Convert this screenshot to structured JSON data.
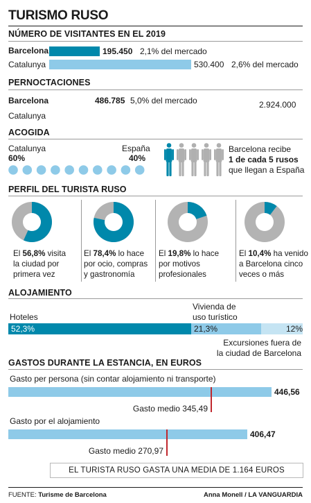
{
  "title": "TURISMO RUSO",
  "colors": {
    "dark": "#0088ab",
    "light": "#8ecae8",
    "lighter": "#c5e4f3",
    "grey": "#b3b3b3",
    "red": "#c0272d"
  },
  "visitors": {
    "heading": "NÚMERO DE VISITANTES EN EL 2019",
    "rows": [
      {
        "label": "Barcelona",
        "value": "195.450",
        "share": "2,1% del mercado"
      },
      {
        "label": "Catalunya",
        "value": "530.400",
        "share": "2,6% del mercado"
      }
    ]
  },
  "nights": {
    "heading": "PERNOCTACIONES",
    "rows": [
      {
        "label": "Barcelona",
        "value": "486.785",
        "share": "5,0% del mercado"
      },
      {
        "label": "Catalunya",
        "value": "2.924.000",
        "share": ""
      }
    ]
  },
  "reception": {
    "heading": "ACOGIDA",
    "left_label": "Catalunya",
    "left_value": "60%",
    "right_label": "España",
    "right_value": "40%",
    "text_line1": "Barcelona recibe",
    "text_line2": "1 de cada 5 rusos",
    "text_line3": "que llegan a España"
  },
  "profile": {
    "heading": "PERFIL DEL TURISTA RUSO",
    "items": [
      {
        "line1_pre": "El ",
        "line1_bold": "56,8%",
        "line1_post": " visita",
        "line2": "la ciudad por",
        "line3": "primera vez"
      },
      {
        "line1_pre": "El ",
        "line1_bold": "78,4%",
        "line1_post": " lo hace",
        "line2": "por ocio, compras",
        "line3": "y gastronomía"
      },
      {
        "line1_pre": "El ",
        "line1_bold": "19,8%",
        "line1_post": " lo hace",
        "line2": "por motivos",
        "line3": "profesionales"
      },
      {
        "line1_pre": "El ",
        "line1_bold": "10,4%",
        "line1_post": " ha venido",
        "line2": "a Barcelona cinco",
        "line3": "veces o más"
      }
    ]
  },
  "lodging": {
    "heading": "ALOJAMIENTO",
    "hotels_label": "Hoteles",
    "vivienda_line1": "Vivienda de",
    "vivienda_line2": "uso turístico",
    "excursion_line1": "Excursiones fuera de",
    "excursion_line2": "la ciudad de Barcelona",
    "seg_hotels": "52,3%",
    "seg_vivienda": "21,3%",
    "seg_excursion": "12%"
  },
  "spending": {
    "heading": "GASTOS DURANTE LA ESTANCIA, EN EUROS",
    "per_person_label": "Gasto per persona (sin contar alojamiento ni transporte)",
    "per_person_value": "446,56",
    "per_person_avg": "Gasto medio 345,49",
    "lodging_label": "Gasto por el alojamiento",
    "lodging_value": "406,47",
    "lodging_avg": "Gasto medio 270,97",
    "total": "EL TURISTA RUSO GASTA UNA MEDIA DE 1.164 EUROS"
  },
  "footer": {
    "source_label": "FUENTE:",
    "source": "Turisme de Barcelona",
    "credit": "Anna Monell / LA VANGUARDIA"
  },
  "chart_data": [
    {
      "type": "bar",
      "title": "NÚMERO DE VISITANTES EN EL 2019",
      "categories": [
        "Barcelona",
        "Catalunya"
      ],
      "values": [
        195450,
        530400
      ],
      "market_share_pct": [
        2.1,
        2.6
      ]
    },
    {
      "type": "bar",
      "title": "PERNOCTACIONES",
      "categories": [
        "Barcelona",
        "Catalunya"
      ],
      "values": [
        486785,
        2924000
      ],
      "market_share_pct": [
        5.0,
        null
      ]
    },
    {
      "type": "bar",
      "title": "ACOGIDA",
      "categories": [
        "Catalunya",
        "España"
      ],
      "values": [
        60,
        40
      ],
      "unit": "%"
    },
    {
      "type": "pie",
      "title": "PERFIL DEL TURISTA RUSO",
      "categories": [
        "visita la ciudad por primera vez",
        "por ocio, compras y gastronomía",
        "por motivos profesionales",
        "ha venido a Barcelona cinco veces o más"
      ],
      "values": [
        56.8,
        78.4,
        19.8,
        10.4
      ],
      "unit": "%"
    },
    {
      "type": "bar",
      "title": "ALOJAMIENTO",
      "categories": [
        "Hoteles",
        "Vivienda de uso turístico",
        "Excursiones fuera de la ciudad de Barcelona"
      ],
      "values": [
        52.3,
        21.3,
        12
      ],
      "unit": "%"
    },
    {
      "type": "bar",
      "title": "GASTOS DURANTE LA ESTANCIA, EN EUROS",
      "categories": [
        "Gasto per persona (sin contar alojamiento ni transporte)",
        "Gasto por el alojamiento"
      ],
      "values": [
        446.56,
        406.47
      ],
      "average": [
        345.49,
        270.97
      ],
      "unit": "EUROS"
    }
  ]
}
